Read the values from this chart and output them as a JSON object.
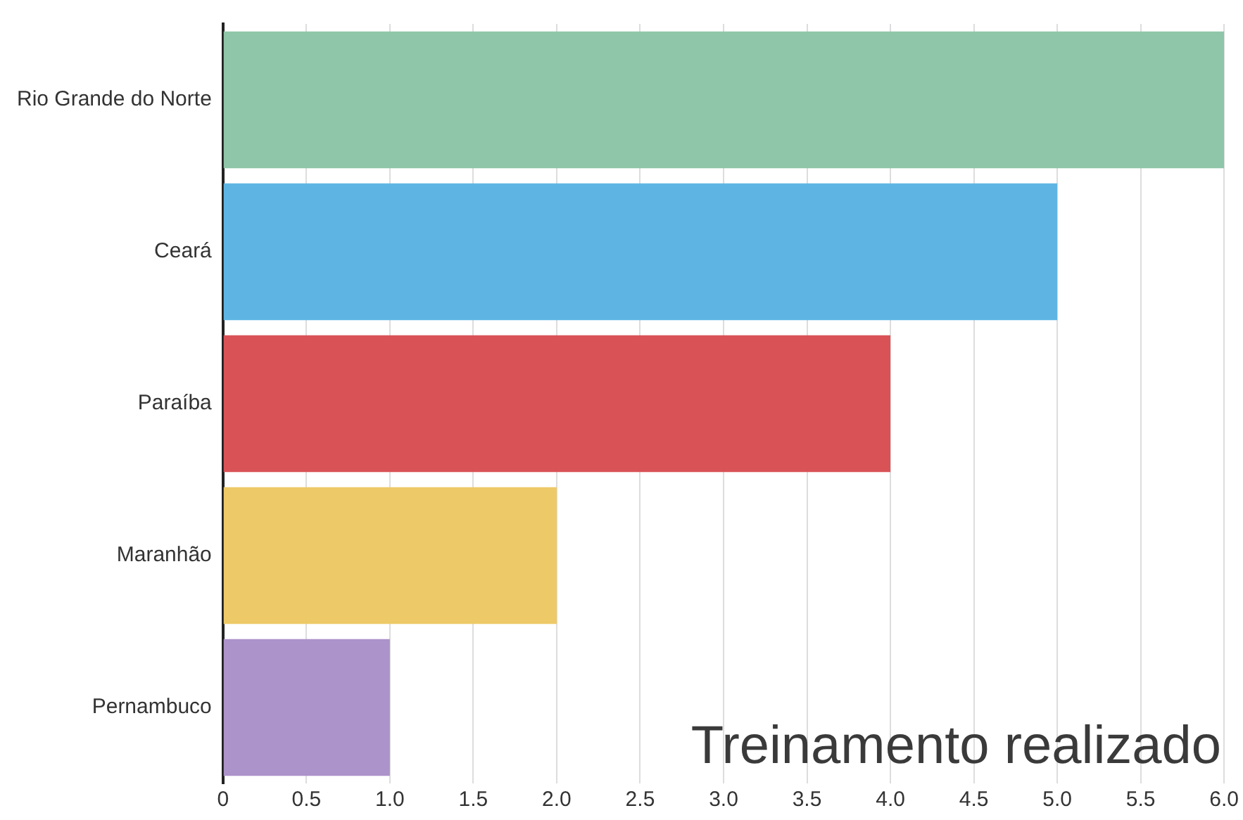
{
  "chart_data": {
    "type": "bar",
    "orientation": "horizontal",
    "title": "Treinamento realizado",
    "categories": [
      "Rio Grande do Norte",
      "Ceará",
      "Paraíba",
      "Maranhão",
      "Pernambuco"
    ],
    "values": [
      6.0,
      5.0,
      4.0,
      2.0,
      1.0
    ],
    "colors": [
      "#8fc5a8",
      "#5eb5e3",
      "#d95256",
      "#edc967",
      "#ac93c9"
    ],
    "xlim": [
      0,
      6
    ],
    "xticks": [
      0,
      {
        "value": 0.5,
        "label": "0.5"
      },
      {
        "value": 1,
        "label": "1.0"
      },
      {
        "value": 1.5,
        "label": "1.5"
      },
      {
        "value": 2,
        "label": "2.0"
      },
      {
        "value": 2.5,
        "label": "2.5"
      },
      {
        "value": 3,
        "label": "3.0"
      },
      {
        "value": 3.5,
        "label": "3.5"
      },
      {
        "value": 4,
        "label": "4.0"
      },
      {
        "value": 4.5,
        "label": "4.5"
      },
      {
        "value": 5,
        "label": "5.0"
      },
      {
        "value": 5.5,
        "label": "5.5"
      },
      {
        "value": 6,
        "label": "6.0"
      }
    ],
    "grid": "x",
    "legend": false
  }
}
